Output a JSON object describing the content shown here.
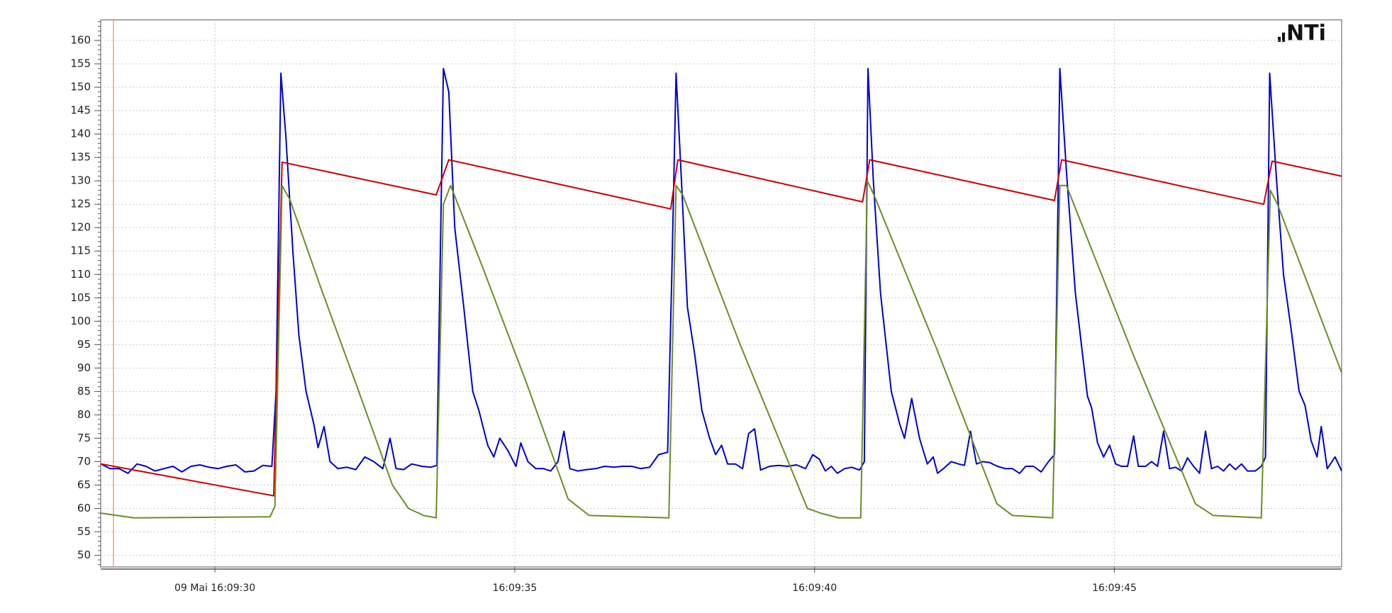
{
  "logo": "NTi",
  "chart_data": {
    "type": "line",
    "xlim": [
      28.095,
      48.79
    ],
    "ylim": [
      47.5,
      164.4
    ],
    "xticks": [
      {
        "value": 30,
        "label": "09 Mai 16:09:30"
      },
      {
        "value": 35,
        "label": "16:09:35"
      },
      {
        "value": 40,
        "label": "16:09:40"
      },
      {
        "value": 45,
        "label": "16:09:45"
      }
    ],
    "yticks": [
      50,
      55,
      60,
      65,
      70,
      75,
      80,
      85,
      90,
      95,
      100,
      105,
      110,
      115,
      120,
      125,
      130,
      135,
      140,
      145,
      150,
      155,
      160
    ],
    "grid": true,
    "series": [
      {
        "color": "#0000cc",
        "x": [
          28.1,
          28.25,
          28.4,
          28.55,
          28.7,
          28.85,
          29.0,
          29.15,
          29.3,
          29.45,
          29.6,
          29.75,
          29.9,
          30.05,
          30.2,
          30.35,
          30.5,
          30.65,
          30.8,
          30.95,
          31.02,
          31.1,
          31.18,
          31.3,
          31.4,
          31.52,
          31.65,
          31.72,
          31.82,
          31.92,
          32.05,
          32.2,
          32.35,
          32.5,
          32.65,
          32.8,
          32.92,
          33.02,
          33.15,
          33.28,
          33.45,
          33.6,
          33.7,
          33.81,
          33.9,
          34.0,
          34.15,
          34.3,
          34.4,
          34.55,
          34.65,
          34.75,
          34.88,
          35.02,
          35.1,
          35.22,
          35.35,
          35.48,
          35.6,
          35.72,
          35.82,
          35.92,
          36.05,
          36.2,
          36.35,
          36.5,
          36.65,
          36.8,
          36.95,
          37.1,
          37.25,
          37.4,
          37.55,
          37.62,
          37.69,
          37.78,
          37.88,
          38.0,
          38.12,
          38.25,
          38.35,
          38.45,
          38.55,
          38.68,
          38.8,
          38.9,
          39.0,
          39.1,
          39.25,
          39.4,
          39.55,
          39.7,
          39.85,
          39.97,
          40.08,
          40.18,
          40.28,
          40.38,
          40.5,
          40.62,
          40.75,
          40.83,
          40.89,
          40.98,
          41.1,
          41.28,
          41.42,
          41.5,
          41.62,
          41.75,
          41.88,
          41.98,
          42.05,
          42.15,
          42.28,
          42.4,
          42.5,
          42.6,
          42.7,
          42.8,
          42.92,
          43.05,
          43.18,
          43.3,
          43.42,
          43.52,
          43.65,
          43.78,
          43.9,
          44.0,
          44.09,
          44.2,
          44.35,
          44.55,
          44.62,
          44.72,
          44.82,
          44.92,
          45.02,
          45.12,
          45.22,
          45.32,
          45.4,
          45.52,
          45.62,
          45.72,
          45.82,
          45.92,
          46.02,
          46.12,
          46.22,
          46.32,
          46.42,
          46.52,
          46.62,
          46.72,
          46.82,
          46.92,
          47.02,
          47.12,
          47.22,
          47.35,
          47.45,
          47.52,
          47.59,
          47.7,
          47.82,
          47.95,
          48.08,
          48.18,
          48.28,
          48.38,
          48.45,
          48.55,
          48.68,
          48.79
        ],
        "values": [
          69.5,
          68.5,
          68.5,
          67.5,
          69.5,
          69,
          68,
          68.5,
          69,
          67.8,
          69,
          69.3,
          68.8,
          68.5,
          69,
          69.3,
          67.8,
          68,
          69.2,
          69,
          85,
          153,
          140,
          115,
          97,
          85,
          78,
          73,
          77.5,
          70,
          68.5,
          68.8,
          68.3,
          71,
          70,
          68.5,
          75,
          68.5,
          68.3,
          69.5,
          69,
          68.8,
          69.2,
          154,
          149,
          120,
          103,
          85,
          81,
          73.5,
          71,
          75,
          72.5,
          69,
          74,
          70,
          68.5,
          68.5,
          68,
          70,
          76.5,
          68.5,
          68,
          68.3,
          68.5,
          69,
          68.8,
          69,
          69,
          68.5,
          68.8,
          71.5,
          72,
          110,
          153,
          130,
          103,
          93,
          81,
          75,
          71.5,
          73.5,
          69.5,
          69.5,
          68.5,
          76,
          77,
          68.2,
          69,
          69.2,
          69,
          69.3,
          68.5,
          71.5,
          70.5,
          68,
          69,
          67.5,
          68.5,
          68.8,
          68.2,
          70,
          154,
          130,
          106,
          85,
          78,
          75,
          83.5,
          75,
          69.5,
          71,
          67.5,
          68.5,
          70,
          69.5,
          69.2,
          76.5,
          69.5,
          70,
          69.8,
          69,
          68.5,
          68.5,
          67.5,
          69,
          69,
          67.8,
          70,
          71.5,
          154,
          132,
          106,
          84,
          81.5,
          74,
          71,
          73.5,
          69.5,
          69,
          69,
          75.5,
          69,
          69,
          70,
          69,
          76.5,
          68.5,
          68.8,
          68,
          70.8,
          69,
          67.5,
          76.5,
          68.5,
          69,
          68,
          69.5,
          68.3,
          69.5,
          68,
          68,
          69,
          71,
          153,
          131,
          110,
          98,
          85,
          82,
          74.5,
          71,
          77.5,
          68.5,
          71,
          68
        ]
      },
      {
        "color": "#cc0000",
        "x": [
          28.1,
          30.98,
          31.12,
          33.69,
          33.9,
          37.6,
          37.72,
          40.8,
          40.92,
          44.0,
          44.12,
          47.49,
          47.63,
          48.79
        ],
        "values": [
          69.5,
          62.7,
          134,
          127,
          134.5,
          124,
          134.5,
          125.5,
          134.5,
          125.8,
          134.5,
          125,
          134.2,
          131
        ]
      },
      {
        "color": "#6b8e23",
        "x": [
          28.1,
          28.65,
          30.92,
          31.0,
          31.12,
          31.25,
          31.77,
          32.37,
          32.96,
          33.23,
          33.48,
          33.69,
          33.81,
          33.93,
          34.45,
          35.19,
          35.89,
          36.24,
          37.57,
          37.69,
          37.8,
          38.76,
          39.88,
          40.1,
          40.4,
          40.77,
          40.88,
          40.99,
          42.04,
          43.04,
          43.3,
          43.97,
          44.09,
          44.2,
          45.31,
          46.35,
          46.65,
          47.45,
          47.6,
          47.72,
          48.79
        ],
        "values": [
          59,
          58,
          58.2,
          60.5,
          129,
          126,
          107,
          86,
          65,
          60,
          58.5,
          58,
          125,
          129,
          112,
          87,
          62,
          58.5,
          58,
          129,
          127,
          95,
          60,
          59,
          58,
          58,
          130,
          127,
          94,
          61,
          58.5,
          58,
          129,
          129,
          93,
          61,
          58.5,
          58,
          128,
          125,
          89
        ]
      }
    ]
  }
}
